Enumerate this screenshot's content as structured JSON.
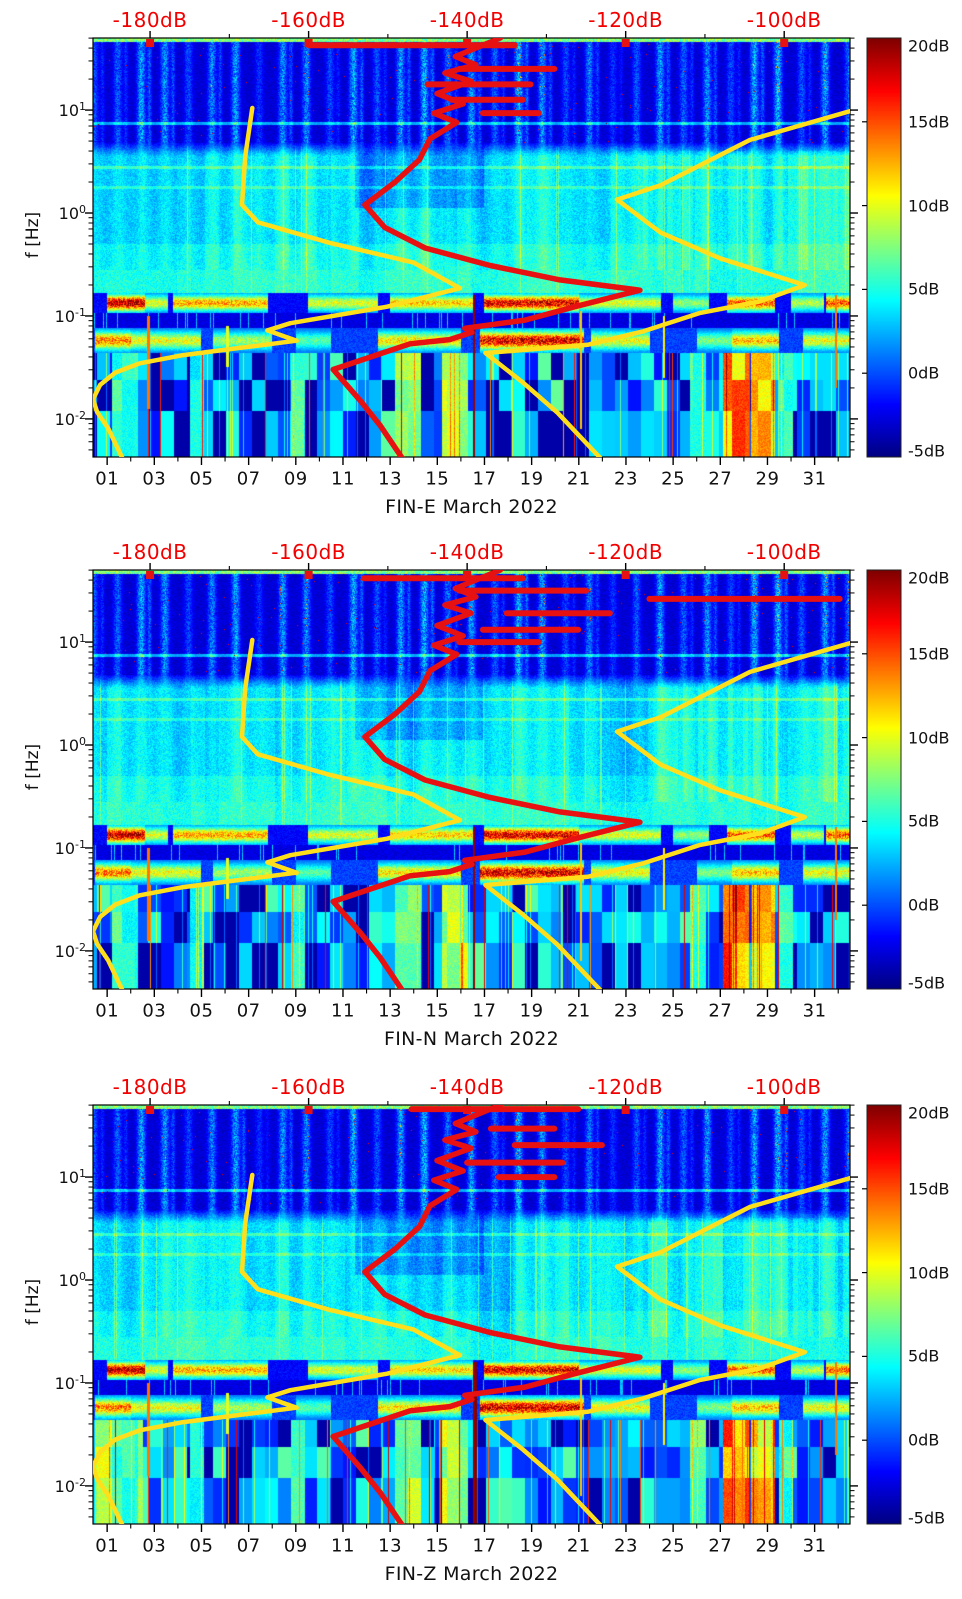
{
  "figure": {
    "background": "#ffffff",
    "top_label_color": "#f20000",
    "curve_red_color": "#e81111",
    "curve_yellow_color": "#ffdf1b",
    "tick_color": "#000000",
    "text_color": "#111111"
  },
  "shared": {
    "x_axis": {
      "tick_labels": [
        "01",
        "03",
        "05",
        "07",
        "09",
        "11",
        "13",
        "15",
        "17",
        "19",
        "21",
        "23",
        "25",
        "27",
        "29",
        "31"
      ],
      "tick_days": [
        1,
        3,
        5,
        7,
        9,
        11,
        13,
        15,
        17,
        19,
        21,
        23,
        25,
        27,
        29,
        31
      ],
      "minor_tick_days": [
        2,
        4,
        6,
        8,
        10,
        12,
        14,
        16,
        18,
        20,
        22,
        24,
        26,
        28,
        30,
        32
      ],
      "range_days": [
        0.4,
        32.5
      ]
    },
    "y_axis": {
      "label": "f [Hz]",
      "base": "10",
      "tick_exponents": [
        1,
        0,
        -1,
        -2
      ],
      "log10f_range": [
        -2.37,
        1.7
      ]
    },
    "top_axis": {
      "labels": [
        "-180dB",
        "-160dB",
        "-140dB",
        "-120dB",
        "-100dB"
      ],
      "values_db": [
        -180,
        -160,
        -140,
        -120,
        -100
      ],
      "minor_values_db": [
        -170,
        -150,
        -130,
        -110
      ],
      "marker_values_db": [
        -180,
        -160,
        -140,
        -120,
        -100
      ],
      "range_db": [
        -187.2,
        -91.7
      ]
    },
    "colorbar": {
      "tick_labels": [
        "20dB",
        "15dB",
        "10dB",
        "5dB",
        "0dB",
        "-5dB"
      ],
      "tick_values": [
        20,
        15,
        10,
        5,
        0,
        -5
      ],
      "inner_tick_values": [
        15,
        10,
        5,
        0
      ],
      "range_db": [
        -5,
        20
      ],
      "colormap": "jet"
    },
    "overlays": {
      "red_psd_curve_db_log10f": [
        [
          -135.8,
          1.7
        ],
        [
          -141.5,
          1.52
        ],
        [
          -138.9,
          1.44
        ],
        [
          -142.8,
          1.36
        ],
        [
          -139.5,
          1.28
        ],
        [
          -143.8,
          1.16
        ],
        [
          -140.5,
          1.06
        ],
        [
          -144.2,
          0.97
        ],
        [
          -141.3,
          0.88
        ],
        [
          -144.7,
          0.72
        ],
        [
          -146.0,
          0.52
        ],
        [
          -149.1,
          0.3
        ],
        [
          -152.9,
          0.08
        ],
        [
          -150.4,
          -0.14
        ],
        [
          -145.3,
          -0.34
        ],
        [
          -137.1,
          -0.51
        ],
        [
          -128.3,
          -0.65
        ],
        [
          -118.2,
          -0.75
        ],
        [
          -126.4,
          -0.91
        ],
        [
          -132.7,
          -1.04
        ],
        [
          -140.3,
          -1.12
        ],
        [
          -139.4,
          -1.16
        ],
        [
          -142.2,
          -1.23
        ],
        [
          -147.2,
          -1.27
        ],
        [
          -156.9,
          -1.52
        ],
        [
          -153.5,
          -1.82
        ],
        [
          -151.0,
          -2.06
        ],
        [
          -148.2,
          -2.38
        ]
      ],
      "yellow_noise_model_left_db_log10f": [
        [
          -167.1,
          1.02
        ],
        [
          -168.0,
          0.55
        ],
        [
          -168.4,
          0.08
        ],
        [
          -166.4,
          -0.09
        ],
        [
          -157.3,
          -0.29
        ],
        [
          -146.8,
          -0.48
        ],
        [
          -140.9,
          -0.73
        ],
        [
          -150.1,
          -0.91
        ],
        [
          -162.3,
          -1.07
        ],
        [
          -165.2,
          -1.14
        ],
        [
          -161.5,
          -1.24
        ],
        [
          -168.7,
          -1.31
        ],
        [
          -175.8,
          -1.38
        ],
        [
          -181.3,
          -1.46
        ],
        [
          -184.4,
          -1.55
        ],
        [
          -186.3,
          -1.67
        ],
        [
          -187.2,
          -1.81
        ],
        [
          -186.7,
          -1.93
        ],
        [
          -185.3,
          -2.09
        ],
        [
          -183.5,
          -2.38
        ]
      ],
      "yellow_noise_model_right_db_log10f": [
        [
          -91.7,
          0.99
        ],
        [
          -104.3,
          0.71
        ],
        [
          -115.6,
          0.27
        ],
        [
          -121.1,
          0.13
        ],
        [
          -115.6,
          -0.19
        ],
        [
          -108.1,
          -0.44
        ],
        [
          -97.4,
          -0.7
        ],
        [
          -103.1,
          -0.86
        ],
        [
          -110.6,
          -0.97
        ],
        [
          -117.8,
          -1.15
        ],
        [
          -124.8,
          -1.28
        ],
        [
          -137.7,
          -1.36
        ],
        [
          -132.9,
          -1.65
        ],
        [
          -128.6,
          -1.94
        ],
        [
          -123.2,
          -2.38
        ]
      ]
    },
    "texture": {
      "stripe_intensity_by_day": [
        0.5,
        0.55,
        0.85,
        0.75,
        0.45,
        0.7,
        0.8,
        0.35,
        0.75,
        0.7,
        0.45,
        0.85,
        0.5,
        0.8,
        0.9,
        0.6,
        0.8,
        0.55,
        0.9,
        0.75,
        0.45,
        0.65,
        0.35,
        0.5,
        0.8,
        0.55,
        0.75,
        0.45,
        0.85,
        0.9,
        0.5,
        0.8,
        0.6
      ],
      "microseism_patches_day_v": [
        [
          1.0,
          2.6,
          19
        ],
        [
          2.6,
          3.6,
          10
        ],
        [
          3.8,
          7.8,
          13
        ],
        [
          9.5,
          12.5,
          10
        ],
        [
          13,
          16.5,
          12
        ],
        [
          17,
          21,
          18
        ],
        [
          21,
          24.5,
          10
        ],
        [
          25,
          26.5,
          8
        ],
        [
          27.3,
          29.3,
          15
        ],
        [
          30,
          31.4,
          9
        ],
        [
          31.5,
          32.5,
          15
        ]
      ],
      "secondary_patches_day_v": [
        [
          0.5,
          2.0,
          15
        ],
        [
          2.0,
          5.0,
          11
        ],
        [
          5.5,
          8.0,
          9
        ],
        [
          9.0,
          10.5,
          7
        ],
        [
          12.5,
          16.0,
          12
        ],
        [
          16.8,
          21.2,
          19
        ],
        [
          21.5,
          24.0,
          11
        ],
        [
          26.0,
          27.5,
          8
        ],
        [
          27.5,
          29.5,
          13
        ],
        [
          30.5,
          32.5,
          11
        ]
      ],
      "low_band_patches_day_v": [
        [
          1.2,
          2.3,
          6
        ],
        [
          4.5,
          5.1,
          5
        ],
        [
          8.8,
          9.4,
          6
        ],
        [
          13.2,
          14.3,
          8
        ],
        [
          15.2,
          16.3,
          9
        ],
        [
          25.7,
          26.4,
          7
        ],
        [
          27.1,
          28.2,
          14
        ],
        [
          28.3,
          29.3,
          12
        ],
        [
          29.5,
          30.1,
          6
        ]
      ],
      "glitch_lines_day_lf_v": [
        [
          16.55,
          -0.8,
          -2.38,
          19.5
        ],
        [
          2.75,
          -1.0,
          -1.9,
          14
        ],
        [
          21.1,
          -0.95,
          -2.1,
          12
        ],
        [
          24.6,
          -1.0,
          -1.6,
          11
        ],
        [
          31.9,
          -0.8,
          -1.7,
          14
        ],
        [
          6.1,
          -1.1,
          -1.5,
          10
        ]
      ],
      "faint_horizontal_lines_lf_boost": [
        [
          0.87,
          5
        ],
        [
          0.44,
          2.5
        ],
        [
          0.25,
          2
        ]
      ]
    }
  },
  "chart_data": [
    {
      "type": "heatmap",
      "title": "FIN-E March 2022",
      "x": "day of March 2022 (01-31)",
      "y": "frequency f [Hz], log scale ~0.004-50 Hz",
      "z": "relative spectral power, -5 dB to 20 dB, jet colormap",
      "top_axis_meaning": "power spectral density of overlaid curves, -180dB to -100dB",
      "seed": 1,
      "red_dashes_db0_db1_lf": [
        [
          -160,
          -134,
          1.63
        ],
        [
          -141,
          -129,
          1.4
        ],
        [
          -145,
          -132,
          1.25
        ],
        [
          -142,
          -133,
          1.1
        ],
        [
          -138,
          -131,
          0.97
        ]
      ]
    },
    {
      "type": "heatmap",
      "title": "FIN-N March 2022",
      "x": "day of March 2022 (01-31)",
      "y": "frequency f [Hz], log scale ~0.004-50 Hz",
      "z": "relative spectral power, -5 dB to 20 dB, jet colormap",
      "top_axis_meaning": "power spectral density of overlaid curves, -180dB to -100dB",
      "seed": 2,
      "red_dashes_db0_db1_lf": [
        [
          -153,
          -133,
          1.62
        ],
        [
          -141,
          -125,
          1.5
        ],
        [
          -117,
          -93,
          1.42
        ],
        [
          -135,
          -122,
          1.28
        ],
        [
          -138,
          -126,
          1.12
        ],
        [
          -141,
          -131,
          1.0
        ]
      ]
    },
    {
      "type": "heatmap",
      "title": "FIN-Z March 2022",
      "x": "day of March 2022 (01-31)",
      "y": "frequency f [Hz], log scale ~0.004-50 Hz",
      "z": "relative spectral power, -5 dB to 20 dB, jet colormap",
      "top_axis_meaning": "power spectral density of overlaid curves, -180dB to -100dB",
      "seed": 3,
      "red_dashes_db0_db1_lf": [
        [
          -147,
          -126,
          1.66
        ],
        [
          -137,
          -129,
          1.47
        ],
        [
          -134,
          -123,
          1.31
        ],
        [
          -140,
          -128,
          1.14
        ],
        [
          -136,
          -129,
          1.0
        ]
      ],
      "low_band_patches_extra": [
        [
          0.5,
          2.5,
          9
        ]
      ],
      "glitch_extra": [
        [
          16.65,
          -0.8,
          -2.38,
          20
        ]
      ]
    }
  ]
}
